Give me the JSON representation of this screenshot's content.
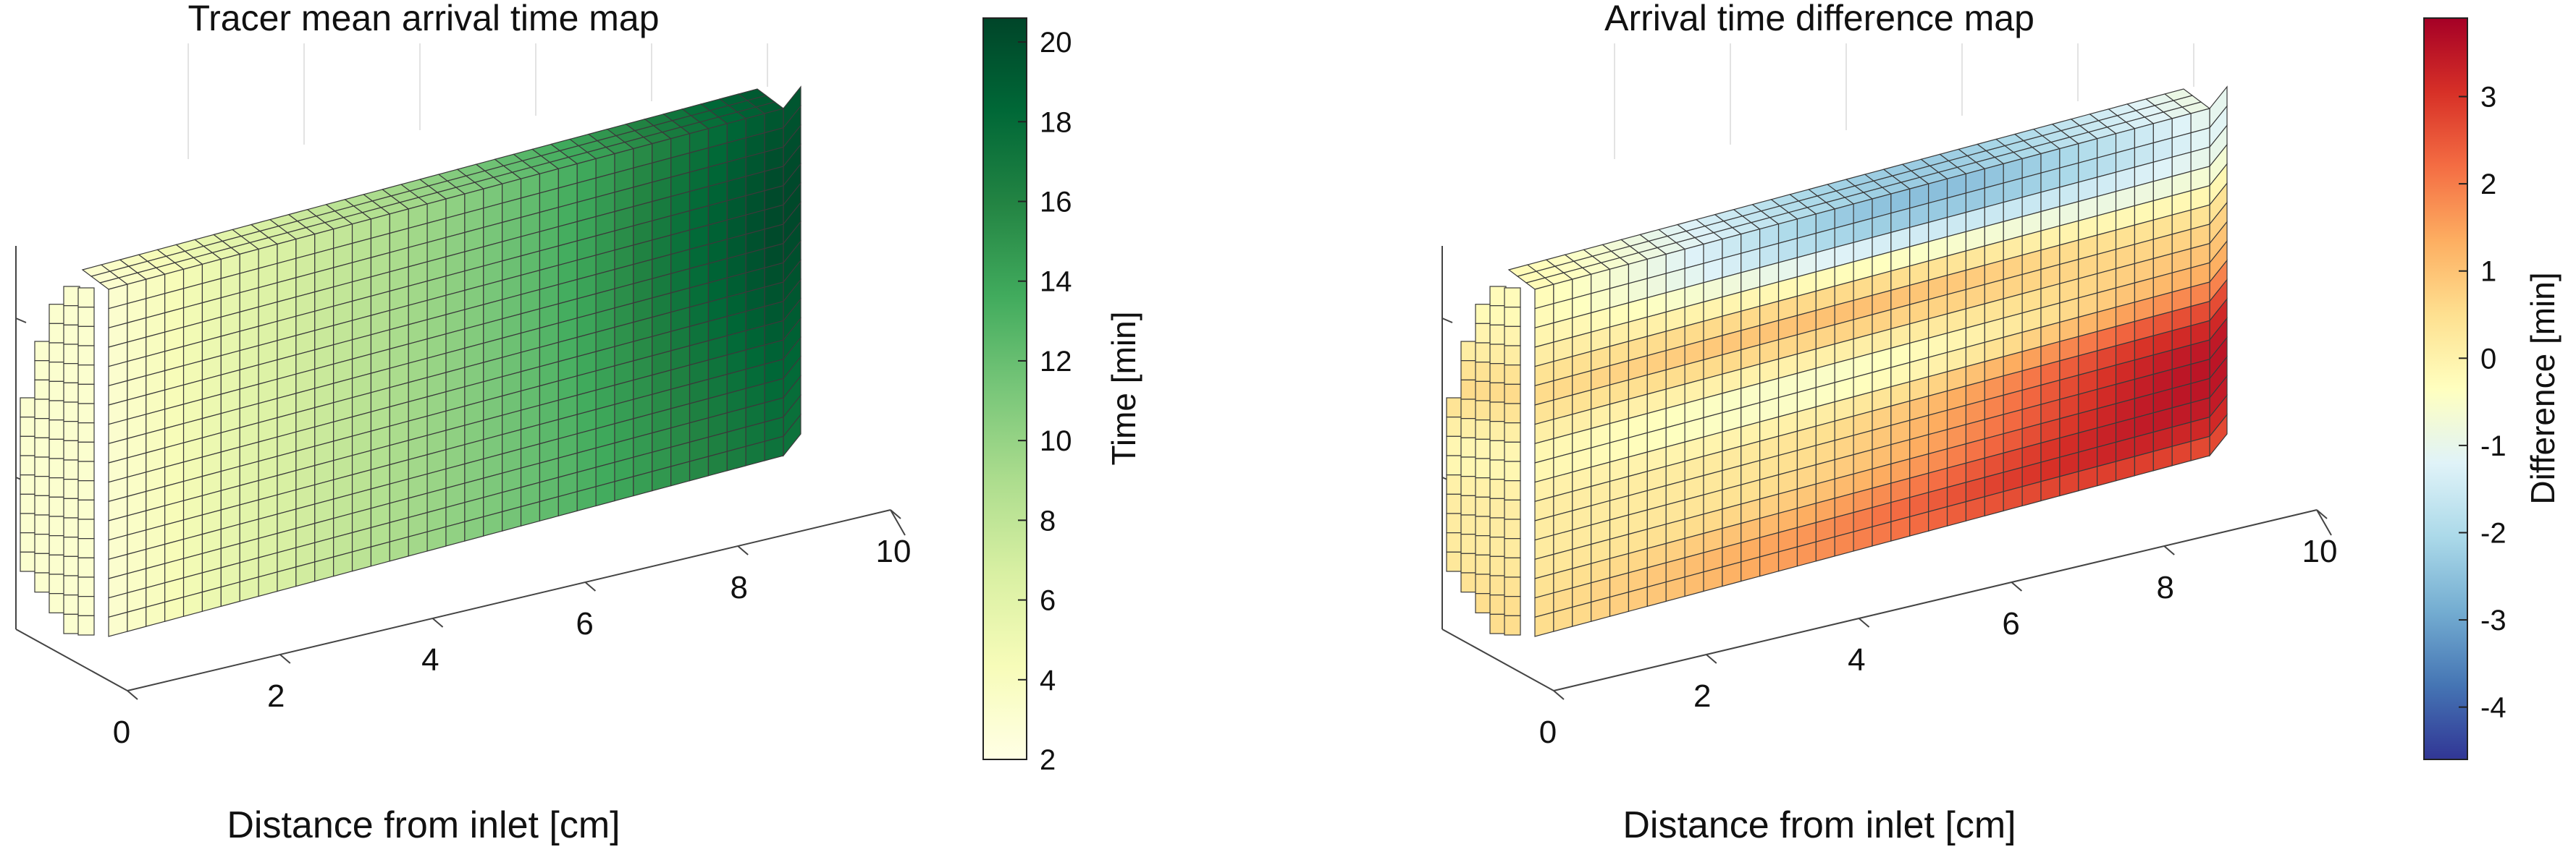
{
  "chart_data": [
    {
      "type": "heatmap",
      "title": "Tracer mean arrival time map",
      "xlabel": "Distance from inlet [cm]",
      "x_ticks": [
        "0",
        "2",
        "4",
        "6",
        "8",
        "10"
      ],
      "x_range": [
        0,
        10
      ],
      "y_range": [
        0,
        1
      ],
      "colorbar": {
        "label": "Time [min]",
        "ticks": [
          "2",
          "4",
          "6",
          "8",
          "10",
          "12",
          "14",
          "16",
          "18",
          "20"
        ],
        "range": [
          2,
          20.6
        ],
        "colormap": "YlGn",
        "colors": [
          "#ffffe5",
          "#f7fcb9",
          "#d9f0a3",
          "#addd8e",
          "#78c679",
          "#41ab5d",
          "#238443",
          "#006837",
          "#004529"
        ]
      },
      "grid": "on",
      "view": "3d-voxel",
      "field": {
        "description": "arrival time increases roughly linearly with distance from inlet",
        "value_at_inlet": 3,
        "value_at_outlet": 17,
        "max_value": 20.5,
        "max_location": "outlet, upper-middle"
      }
    },
    {
      "type": "heatmap",
      "title": "Arrival time difference map",
      "xlabel": "Distance from inlet [cm]",
      "x_ticks": [
        "0",
        "2",
        "4",
        "6",
        "8",
        "10"
      ],
      "x_range": [
        0,
        10
      ],
      "y_range": [
        0,
        1
      ],
      "colorbar": {
        "label": "Difference [min]",
        "ticks": [
          "-4",
          "-3",
          "-2",
          "-1",
          "0",
          "1",
          "2",
          "3"
        ],
        "range": [
          -4.6,
          3.9
        ],
        "colormap": "RdYlBu_r",
        "colors": [
          "#313695",
          "#4575b4",
          "#74add1",
          "#abd9e9",
          "#e0f3f8",
          "#ffffbf",
          "#fee090",
          "#fdae61",
          "#f46d43",
          "#d73027",
          "#a50026"
        ]
      },
      "grid": "on",
      "view": "3d-voxel",
      "field": {
        "description": "negative (blue) band along top, positive (orange-red) wedge toward outlet lower half",
        "min_value": -2.8,
        "max_value": 3.6
      }
    }
  ]
}
